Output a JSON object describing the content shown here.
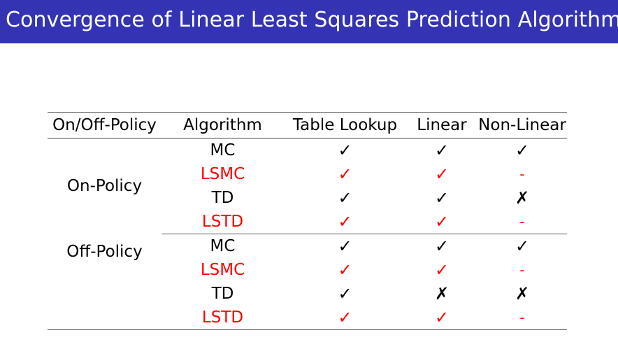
{
  "title": "Convergence of Linear Least Squares Prediction Algorithms",
  "colors": {
    "title_bar": "#3333b3",
    "highlight": "#ff0000"
  },
  "table": {
    "headers": [
      "On/Off-Policy",
      "Algorithm",
      "Table Lookup",
      "Linear",
      "Non-Linear"
    ],
    "groups": [
      {
        "policy": "On-Policy",
        "rows": [
          {
            "algorithm": "MC",
            "highlight": false,
            "table_lookup": "✓",
            "linear": "✓",
            "non_linear": "✓"
          },
          {
            "algorithm": "LSMC",
            "highlight": true,
            "table_lookup": "✓",
            "linear": "✓",
            "non_linear": "-"
          },
          {
            "algorithm": "TD",
            "highlight": false,
            "table_lookup": "✓",
            "linear": "✓",
            "non_linear": "✗"
          },
          {
            "algorithm": "LSTD",
            "highlight": true,
            "table_lookup": "✓",
            "linear": "✓",
            "non_linear": "-"
          }
        ]
      },
      {
        "policy": "Off-Policy",
        "rows": [
          {
            "algorithm": "MC",
            "highlight": false,
            "table_lookup": "✓",
            "linear": "✓",
            "non_linear": "✓"
          },
          {
            "algorithm": "LSMC",
            "highlight": true,
            "table_lookup": "✓",
            "linear": "✓",
            "non_linear": "-"
          },
          {
            "algorithm": "TD",
            "highlight": false,
            "table_lookup": "✓",
            "linear": "✗",
            "non_linear": "✗"
          },
          {
            "algorithm": "LSTD",
            "highlight": true,
            "table_lookup": "✓",
            "linear": "✓",
            "non_linear": "-"
          }
        ]
      }
    ]
  }
}
